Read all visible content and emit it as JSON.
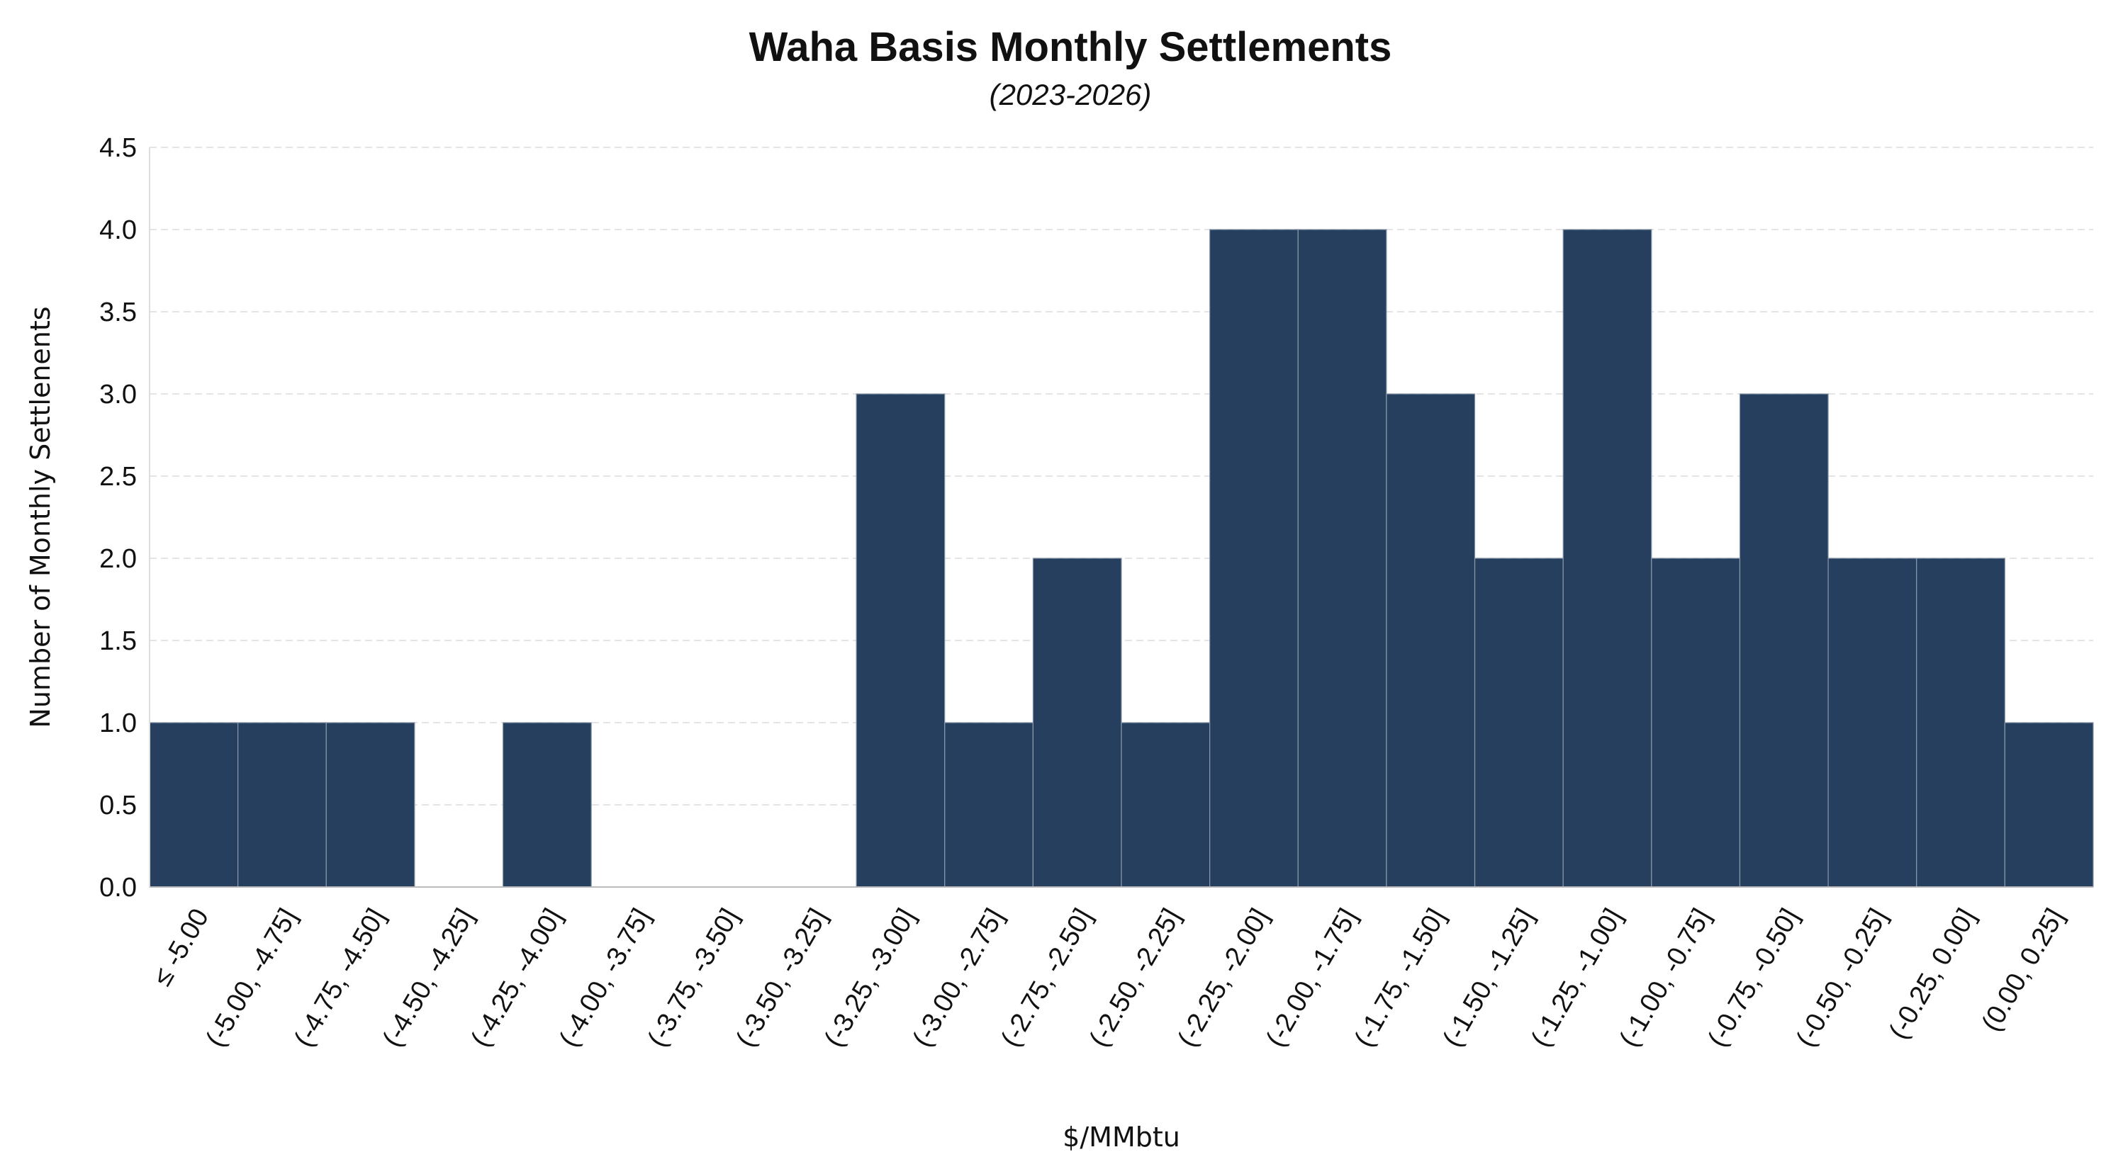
{
  "chart_data": {
    "type": "bar",
    "title": "Waha Basis Monthly Settlements",
    "subtitle": "(2023-2026)",
    "xlabel": "$/MMbtu",
    "ylabel": "Number of Monthly Settlenents",
    "ylim": [
      0,
      4.5
    ],
    "yticks": [
      "0.0",
      "0.5",
      "1.0",
      "1.5",
      "2.0",
      "2.5",
      "3.0",
      "3.5",
      "4.0",
      "4.5"
    ],
    "grid": "y-dashed",
    "bar_color": "#263F5F",
    "categories": [
      "≤ -5.00",
      "(-5.00, -4.75]",
      "(-4.75, -4.50]",
      "(-4.50, -4.25]",
      "(-4.25, -4.00]",
      "(-4.00, -3.75]",
      "(-3.75, -3.50]",
      "(-3.50, -3.25]",
      "(-3.25, -3.00]",
      "(-3.00, -2.75]",
      "(-2.75, -2.50]",
      "(-2.50, -2.25]",
      "(-2.25, -2.00]",
      "(-2.00, -1.75]",
      "(-1.75, -1.50]",
      "(-1.50, -1.25]",
      "(-1.25, -1.00]",
      "(-1.00, -0.75]",
      "(-0.75, -0.50]",
      "(-0.50, -0.25]",
      "(-0.25, 0.00]",
      "(0.00, 0.25]"
    ],
    "values": [
      1,
      1,
      1,
      0,
      1,
      0,
      0,
      0,
      3,
      1,
      2,
      1,
      4,
      4,
      3,
      2,
      4,
      2,
      3,
      2,
      2,
      1
    ]
  }
}
